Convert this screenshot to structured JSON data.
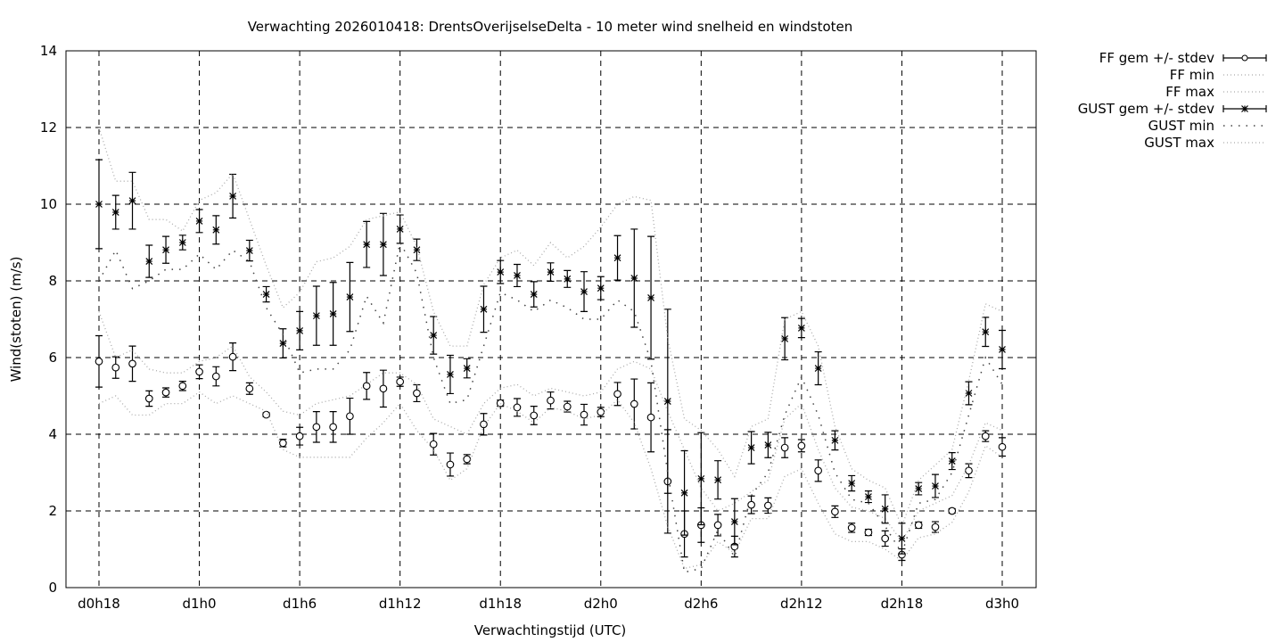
{
  "chart_data": {
    "type": "line",
    "title": "Verwachting 2026010418: DrentsOverijselseDelta - 10 meter wind snelheid en windstoten",
    "xlabel": "Verwachtingstijd (UTC)",
    "ylabel": "Wind(stoten) (m/s)",
    "ylim": [
      0,
      14
    ],
    "yticks": [
      0,
      2,
      4,
      6,
      8,
      10,
      12,
      14
    ],
    "xlim_hours": [
      -2,
      56
    ],
    "xticks": [
      {
        "hour": 0,
        "label": "d0h18"
      },
      {
        "hour": 6,
        "label": "d1h0"
      },
      {
        "hour": 12,
        "label": "d1h6"
      },
      {
        "hour": 18,
        "label": "d1h12"
      },
      {
        "hour": 24,
        "label": "d1h18"
      },
      {
        "hour": 30,
        "label": "d2h0"
      },
      {
        "hour": 36,
        "label": "d2h6"
      },
      {
        "hour": 42,
        "label": "d2h12"
      },
      {
        "hour": 48,
        "label": "d2h18"
      },
      {
        "hour": 54,
        "label": "d3h0"
      }
    ],
    "grid": true,
    "legend_position": "outside-top-right",
    "x_hours_step": 1,
    "series": [
      {
        "name": "FF gem +/- stdev",
        "style": "errorbar-circle",
        "values": [
          5.9,
          5.74,
          5.84,
          4.93,
          5.09,
          5.26,
          5.63,
          5.51,
          6.02,
          5.19,
          4.51,
          3.77,
          3.95,
          4.19,
          4.19,
          4.47,
          5.26,
          5.19,
          5.37,
          5.07,
          3.74,
          3.21,
          3.35,
          4.26,
          4.81,
          4.7,
          4.49,
          4.88,
          4.72,
          4.51,
          4.58,
          5.05,
          4.79,
          4.44,
          2.77,
          1.4,
          1.63,
          1.63,
          1.07,
          2.16,
          2.14,
          3.65,
          3.7,
          3.05,
          1.98,
          1.56,
          1.44,
          1.28,
          0.86,
          1.63,
          1.58,
          2.0,
          3.05,
          3.95,
          3.67
        ],
        "stdev": [
          0.67,
          0.28,
          0.46,
          0.2,
          0.12,
          0.12,
          0.18,
          0.25,
          0.36,
          0.15,
          0.05,
          0.1,
          0.23,
          0.4,
          0.4,
          0.47,
          0.35,
          0.48,
          0.12,
          0.22,
          0.28,
          0.3,
          0.12,
          0.28,
          0.08,
          0.23,
          0.24,
          0.22,
          0.14,
          0.27,
          0.12,
          0.3,
          0.65,
          0.9,
          1.35,
          0.6,
          0.45,
          0.28,
          0.27,
          0.23,
          0.2,
          0.26,
          0.16,
          0.28,
          0.15,
          0.12,
          0.08,
          0.2,
          0.15,
          0.08,
          0.14,
          0.06,
          0.18,
          0.14,
          0.24
        ]
      },
      {
        "name": "FF min",
        "style": "dotted-light",
        "values": [
          4.8,
          5.0,
          4.5,
          4.5,
          4.8,
          4.8,
          5.1,
          4.8,
          5.0,
          4.8,
          4.6,
          3.6,
          3.4,
          3.4,
          3.4,
          3.4,
          3.9,
          4.3,
          4.8,
          4.1,
          3.6,
          2.8,
          3.1,
          4.2,
          4.8,
          4.6,
          4.3,
          4.7,
          4.6,
          4.4,
          4.5,
          4.9,
          4.3,
          3.1,
          1.6,
          0.5,
          0.6,
          1.2,
          0.9,
          1.8,
          1.8,
          2.9,
          3.1,
          2.2,
          1.4,
          1.2,
          1.2,
          1.0,
          0.7,
          1.3,
          1.4,
          1.7,
          2.5,
          3.7,
          3.4
        ]
      },
      {
        "name": "FF max",
        "style": "dotted-light",
        "values": [
          7.2,
          6.0,
          6.2,
          5.7,
          5.6,
          5.6,
          5.9,
          6.0,
          6.3,
          5.5,
          5.1,
          4.6,
          4.5,
          4.8,
          4.9,
          5.0,
          5.3,
          5.6,
          5.6,
          5.3,
          4.4,
          4.2,
          4.0,
          4.8,
          5.2,
          5.3,
          5.0,
          5.2,
          5.1,
          5.0,
          5.1,
          5.7,
          5.9,
          5.7,
          4.6,
          3.6,
          2.6,
          2.0,
          2.2,
          2.5,
          2.8,
          4.4,
          4.8,
          3.6,
          2.6,
          2.1,
          2.0,
          1.8,
          1.2,
          2.0,
          2.2,
          2.4,
          3.2,
          4.3,
          4.1
        ]
      },
      {
        "name": "GUST gem +/- stdev",
        "style": "errorbar-star",
        "values": [
          10.0,
          9.79,
          10.09,
          8.51,
          8.81,
          9.0,
          9.56,
          9.33,
          10.21,
          8.79,
          7.65,
          6.37,
          6.7,
          7.09,
          7.14,
          7.58,
          8.95,
          8.95,
          9.35,
          8.81,
          6.58,
          5.56,
          5.72,
          7.26,
          8.23,
          8.14,
          7.65,
          8.23,
          8.05,
          7.72,
          7.81,
          8.6,
          8.07,
          7.56,
          4.86,
          2.47,
          2.84,
          2.81,
          1.72,
          3.65,
          3.72,
          6.49,
          6.77,
          5.72,
          3.84,
          2.72,
          2.37,
          2.05,
          1.28,
          2.58,
          2.65,
          3.3,
          5.07,
          6.67,
          6.21
        ],
        "stdev": [
          1.16,
          0.44,
          0.74,
          0.42,
          0.35,
          0.19,
          0.3,
          0.37,
          0.57,
          0.27,
          0.2,
          0.38,
          0.5,
          0.77,
          0.82,
          0.9,
          0.6,
          0.81,
          0.37,
          0.28,
          0.49,
          0.5,
          0.25,
          0.6,
          0.3,
          0.29,
          0.33,
          0.24,
          0.22,
          0.52,
          0.3,
          0.58,
          1.28,
          1.6,
          2.4,
          1.1,
          1.2,
          0.5,
          0.6,
          0.42,
          0.33,
          0.55,
          0.25,
          0.43,
          0.25,
          0.2,
          0.15,
          0.37,
          0.4,
          0.16,
          0.3,
          0.22,
          0.3,
          0.38,
          0.5
        ]
      },
      {
        "name": "GUST min",
        "style": "dotted-dark",
        "values": [
          8.0,
          8.8,
          7.8,
          8.0,
          8.3,
          8.3,
          8.7,
          8.3,
          8.8,
          8.5,
          7.3,
          6.6,
          5.6,
          5.7,
          5.7,
          6.2,
          7.6,
          6.9,
          9.0,
          8.2,
          6.0,
          4.8,
          4.9,
          6.3,
          7.7,
          7.5,
          7.2,
          7.5,
          7.3,
          7.0,
          7.0,
          7.5,
          7.2,
          5.9,
          3.0,
          0.4,
          0.5,
          1.5,
          0.8,
          2.4,
          3.0,
          4.5,
          5.5,
          4.5,
          3.0,
          2.3,
          2.2,
          1.6,
          0.9,
          2.2,
          2.3,
          3.0,
          4.5,
          6.0,
          5.3
        ]
      },
      {
        "name": "GUST max",
        "style": "dotted-light",
        "values": [
          12.0,
          10.6,
          10.6,
          9.6,
          9.6,
          9.3,
          10.1,
          10.3,
          10.8,
          9.6,
          8.4,
          7.3,
          7.7,
          8.5,
          8.6,
          8.9,
          9.6,
          9.7,
          9.8,
          8.9,
          7.2,
          6.3,
          6.3,
          7.9,
          8.6,
          8.8,
          8.4,
          9.0,
          8.6,
          8.9,
          9.4,
          10.0,
          10.2,
          10.1,
          6.5,
          4.4,
          4.1,
          3.6,
          2.9,
          4.2,
          4.4,
          7.0,
          7.2,
          6.3,
          4.2,
          3.1,
          2.8,
          2.6,
          1.6,
          2.8,
          3.2,
          3.6,
          5.4,
          7.4,
          7.2
        ]
      }
    ]
  }
}
